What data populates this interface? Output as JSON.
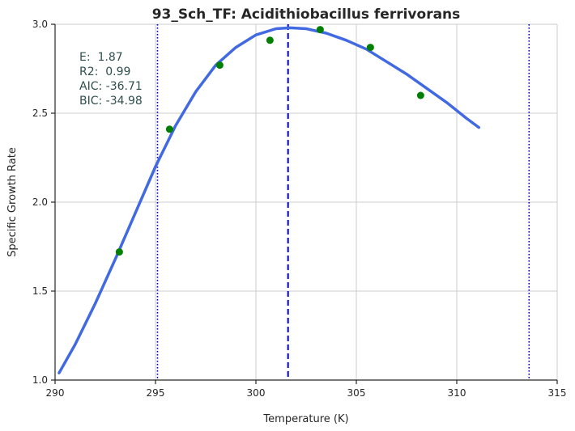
{
  "chart_data": {
    "type": "scatter",
    "title": "93_Sch_TF: Acidithiobacillus ferrivorans",
    "xlabel": "Temperature (K)",
    "ylabel": "Specific Growth Rate",
    "xlim": [
      290,
      315
    ],
    "ylim": [
      1.0,
      3.0
    ],
    "xticks": [
      290,
      295,
      300,
      305,
      310,
      315
    ],
    "yticks": [
      1.0,
      1.5,
      2.0,
      2.5,
      3.0
    ],
    "xtick_labels": [
      "290",
      "295",
      "300",
      "305",
      "310",
      "315"
    ],
    "ytick_labels": [
      "1.0",
      "1.5",
      "2.0",
      "2.5",
      "3.0"
    ],
    "grid": true,
    "series": [
      {
        "kind": "points",
        "color": "#008000",
        "x": [
          293.2,
          295.7,
          298.2,
          300.7,
          303.2,
          305.7,
          308.2
        ],
        "y": [
          1.72,
          2.41,
          2.77,
          2.91,
          2.97,
          2.87,
          2.6
        ]
      },
      {
        "kind": "curve",
        "color": "#4169e1",
        "x": [
          290.2,
          291.0,
          292.0,
          293.0,
          294.0,
          295.0,
          296.0,
          297.0,
          298.0,
          299.0,
          300.0,
          301.0,
          301.7,
          302.5,
          303.5,
          304.5,
          305.5,
          306.5,
          307.5,
          308.5,
          309.5,
          310.5,
          311.1
        ],
        "y": [
          1.04,
          1.2,
          1.43,
          1.68,
          1.94,
          2.2,
          2.43,
          2.62,
          2.77,
          2.87,
          2.94,
          2.975,
          2.98,
          2.975,
          2.95,
          2.91,
          2.86,
          2.79,
          2.72,
          2.64,
          2.56,
          2.47,
          2.42
        ]
      }
    ],
    "vlines": [
      {
        "x": 295.1,
        "style": "dotted",
        "color": "#0000cc"
      },
      {
        "x": 301.6,
        "style": "dashed",
        "color": "#0000cc"
      },
      {
        "x": 313.6,
        "style": "dotted",
        "color": "#0000cc"
      }
    ],
    "annotations": {
      "lines": [
        "E:  1.87",
        "R2:  0.99",
        "AIC: -36.71",
        "BIC: -34.98"
      ]
    }
  }
}
